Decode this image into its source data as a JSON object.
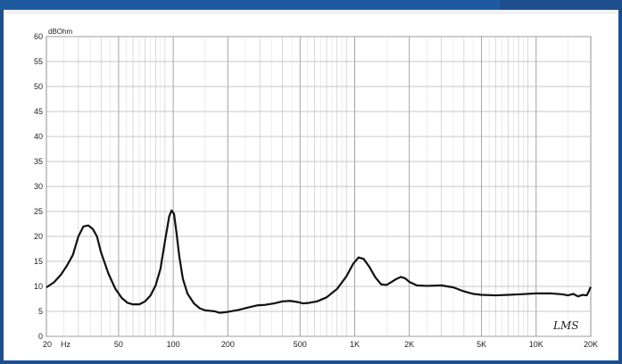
{
  "chart_data": {
    "type": "line",
    "title": "",
    "ylabel": "dBOhm",
    "xlabel": "",
    "x_unit": "Hz",
    "x_scale": "log",
    "xlim": [
      20,
      20000
    ],
    "ylim": [
      0,
      60
    ],
    "grid": true,
    "brand_mark": "LMS",
    "y_ticks": [
      0,
      5,
      10,
      15,
      20,
      25,
      30,
      35,
      40,
      45,
      50,
      55,
      60
    ],
    "x_tick_labels": [
      {
        "value": 20,
        "label": "20"
      },
      {
        "value": 50,
        "label": "50"
      },
      {
        "value": 100,
        "label": "100"
      },
      {
        "value": 200,
        "label": "200"
      },
      {
        "value": 500,
        "label": "500"
      },
      {
        "value": 1000,
        "label": "1K"
      },
      {
        "value": 2000,
        "label": "2K"
      },
      {
        "value": 5000,
        "label": "5K"
      },
      {
        "value": 10000,
        "label": "10K"
      },
      {
        "value": 20000,
        "label": "20K"
      }
    ],
    "series": [
      {
        "name": "",
        "color": "#111111",
        "points": [
          [
            20,
            9.8
          ],
          [
            22,
            10.8
          ],
          [
            24,
            12.3
          ],
          [
            26,
            14.2
          ],
          [
            28,
            16.3
          ],
          [
            30,
            20.0
          ],
          [
            32,
            22.0
          ],
          [
            34,
            22.2
          ],
          [
            36,
            21.5
          ],
          [
            38,
            20.0
          ],
          [
            40,
            16.8
          ],
          [
            44,
            12.5
          ],
          [
            48,
            9.5
          ],
          [
            52,
            7.7
          ],
          [
            56,
            6.7
          ],
          [
            60,
            6.4
          ],
          [
            65,
            6.4
          ],
          [
            70,
            7.0
          ],
          [
            75,
            8.2
          ],
          [
            80,
            10.2
          ],
          [
            85,
            13.5
          ],
          [
            90,
            19.0
          ],
          [
            95,
            24.0
          ],
          [
            98,
            25.2
          ],
          [
            101,
            24.5
          ],
          [
            104,
            21.0
          ],
          [
            108,
            16.0
          ],
          [
            113,
            11.5
          ],
          [
            120,
            8.5
          ],
          [
            130,
            6.6
          ],
          [
            140,
            5.6
          ],
          [
            150,
            5.2
          ],
          [
            160,
            5.1
          ],
          [
            170,
            5.0
          ],
          [
            180,
            4.7
          ],
          [
            200,
            4.9
          ],
          [
            230,
            5.3
          ],
          [
            260,
            5.8
          ],
          [
            290,
            6.2
          ],
          [
            320,
            6.3
          ],
          [
            360,
            6.6
          ],
          [
            400,
            7.0
          ],
          [
            440,
            7.1
          ],
          [
            480,
            6.9
          ],
          [
            520,
            6.6
          ],
          [
            560,
            6.7
          ],
          [
            620,
            7.0
          ],
          [
            700,
            7.8
          ],
          [
            800,
            9.5
          ],
          [
            900,
            12.0
          ],
          [
            980,
            14.5
          ],
          [
            1050,
            15.8
          ],
          [
            1120,
            15.5
          ],
          [
            1200,
            14.0
          ],
          [
            1300,
            11.8
          ],
          [
            1400,
            10.4
          ],
          [
            1500,
            10.3
          ],
          [
            1600,
            10.9
          ],
          [
            1700,
            11.5
          ],
          [
            1800,
            11.9
          ],
          [
            1900,
            11.6
          ],
          [
            2000,
            10.9
          ],
          [
            2200,
            10.2
          ],
          [
            2500,
            10.1
          ],
          [
            3000,
            10.2
          ],
          [
            3500,
            9.8
          ],
          [
            4000,
            9.0
          ],
          [
            4500,
            8.5
          ],
          [
            5000,
            8.3
          ],
          [
            6000,
            8.2
          ],
          [
            7000,
            8.3
          ],
          [
            8000,
            8.4
          ],
          [
            10000,
            8.6
          ],
          [
            12000,
            8.6
          ],
          [
            14000,
            8.4
          ],
          [
            15000,
            8.2
          ],
          [
            16000,
            8.5
          ],
          [
            17000,
            8.0
          ],
          [
            18000,
            8.3
          ],
          [
            19000,
            8.2
          ],
          [
            19500,
            9.0
          ],
          [
            20000,
            9.9
          ]
        ]
      }
    ]
  }
}
